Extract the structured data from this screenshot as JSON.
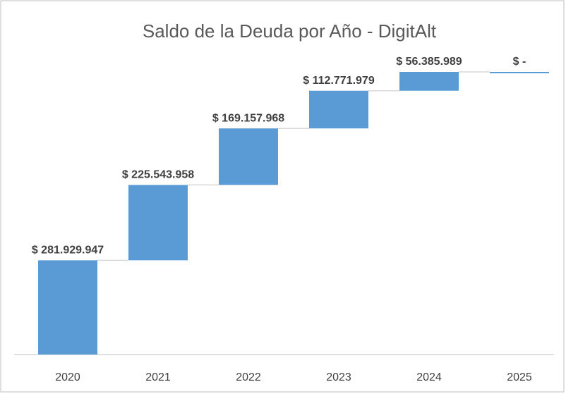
{
  "chart_data": {
    "type": "waterfall",
    "title": "Saldo de la Deuda por Año - DigitAlt",
    "categories": [
      "2020",
      "2021",
      "2022",
      "2023",
      "2024",
      "2025"
    ],
    "values": [
      281929947,
      225543958,
      169157968,
      112771979,
      56385989,
      0
    ],
    "value_labels": [
      "$ 281.929.947",
      "$ 225.543.958",
      "$ 169.157.968",
      "$ 112.771.979",
      "$ 56.385.989",
      "$ -"
    ],
    "color": "#5b9bd5"
  }
}
